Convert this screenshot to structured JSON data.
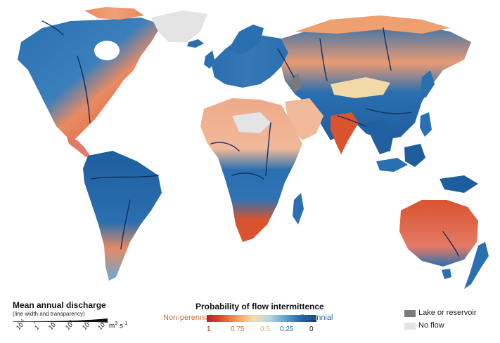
{
  "map": {
    "colors": {
      "perennial_dark": "#163b73",
      "perennial": "#2a6fb0",
      "perennial_light": "#6aa8d2",
      "mid": "#f1d9a8",
      "nonperennial_light": "#efa070",
      "nonperennial": "#d9532f",
      "nonperennial_dark": "#b52026",
      "lake": "#7a7a7a",
      "no_flow": "#e4e4e4"
    }
  },
  "legend_discharge": {
    "title": "Mean annual discharge",
    "subtitle": "(line width and transparency)",
    "ticks": [
      {
        "base": "10",
        "exp": "-1"
      },
      {
        "base": "1",
        "exp": ""
      },
      {
        "base": "10",
        "exp": ""
      },
      {
        "base": "10",
        "exp": "2"
      },
      {
        "base": "10",
        "exp": "3"
      },
      {
        "base": "10",
        "exp": "4"
      }
    ],
    "unit": "m",
    "unit_exp": "3",
    "unit_tail": " s",
    "unit_tail_exp": "-1"
  },
  "legend_probability": {
    "title": "Probability of flow intermittence",
    "left_label": "Non-perennial",
    "right_label": "Perennial",
    "ticks": [
      {
        "label": "1",
        "color": "#b52026"
      },
      {
        "label": "0.75",
        "color": "#c8703a"
      },
      {
        "label": "0.5",
        "color": "#d9b46a"
      },
      {
        "label": "0.25",
        "color": "#2f6e9e"
      },
      {
        "label": "0",
        "color": "#222222"
      }
    ]
  },
  "legend_categories": {
    "items": [
      {
        "label": "Lake or reservoir",
        "color": "#7a7a7a"
      },
      {
        "label": "No flow",
        "color": "#e4e4e4"
      }
    ]
  }
}
